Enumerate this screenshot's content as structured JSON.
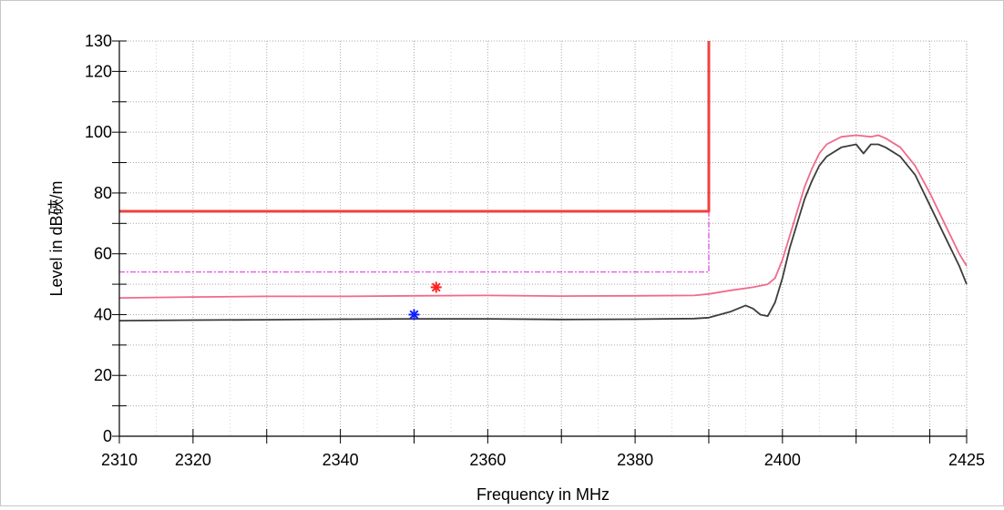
{
  "chart_data": {
    "type": "line",
    "xlabel": "Frequency in MHz",
    "ylabel": "Level in dB硤/m",
    "xlim": [
      2310,
      2425
    ],
    "ylim": [
      0,
      130
    ],
    "x_ticks": [
      2310,
      2320,
      2340,
      2360,
      2380,
      2400,
      2425
    ],
    "y_ticks": [
      0,
      20,
      40,
      60,
      80,
      100,
      120,
      130
    ],
    "grid": true,
    "legend": "none",
    "colors": {
      "peak_trace": "#f06a8c",
      "average_trace": "#3c3c3c",
      "peak_limit": "#f04040",
      "average_limit": "#e040e0",
      "peak_marker": "#ff2020",
      "average_marker": "#1020ff"
    },
    "series": [
      {
        "key": "peak_limit",
        "x": [
          2310,
          2390,
          2390
        ],
        "y": [
          74,
          74,
          130
        ]
      },
      {
        "key": "average_limit",
        "x": [
          2310,
          2390,
          2390
        ],
        "y": [
          54,
          54,
          130
        ]
      },
      {
        "key": "peak_trace",
        "x": [
          2310,
          2320,
          2330,
          2340,
          2350,
          2360,
          2370,
          2380,
          2388,
          2390,
          2393,
          2396,
          2398,
          2399,
          2400,
          2401,
          2402,
          2403,
          2404,
          2405,
          2406,
          2408,
          2410,
          2412,
          2413,
          2414,
          2416,
          2418,
          2420,
          2422,
          2424,
          2425
        ],
        "y": [
          45.5,
          45.8,
          46,
          46,
          46.2,
          46.3,
          46.1,
          46.2,
          46.3,
          46.8,
          48,
          49,
          50,
          52,
          58,
          66,
          74,
          82,
          88,
          93,
          96,
          98.5,
          99,
          98.5,
          99,
          98,
          95,
          89,
          80,
          70,
          60,
          56
        ]
      },
      {
        "key": "average_trace",
        "x": [
          2310,
          2320,
          2330,
          2340,
          2350,
          2360,
          2370,
          2380,
          2388,
          2390,
          2393,
          2395,
          2396,
          2397,
          2398,
          2399,
          2400,
          2401,
          2402,
          2403,
          2404,
          2405,
          2406,
          2408,
          2410,
          2411,
          2412,
          2413,
          2414,
          2416,
          2418,
          2420,
          2422,
          2424,
          2425
        ],
        "y": [
          38,
          38.2,
          38.3,
          38.5,
          38.6,
          38.6,
          38.4,
          38.5,
          38.7,
          39,
          41,
          43,
          42,
          40,
          39.5,
          44,
          52,
          62,
          70,
          78,
          84,
          89,
          92,
          95,
          96,
          93,
          96,
          96,
          95,
          92,
          86,
          76,
          66,
          56,
          50
        ]
      }
    ],
    "markers": [
      {
        "key": "peak_marker",
        "x": 2353,
        "y": 49
      },
      {
        "key": "average_marker",
        "x": 2350,
        "y": 40
      }
    ]
  }
}
